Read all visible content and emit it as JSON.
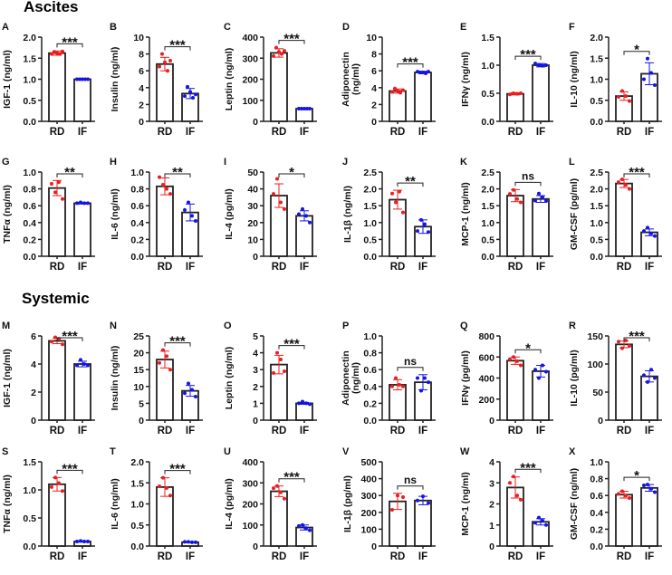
{
  "sections": {
    "ascites": "Ascites",
    "systemic": "Systemic"
  },
  "colors": {
    "rd": "#ee1c1c",
    "if": "#1414e6",
    "bar": "#222222"
  },
  "chart_data": [
    {
      "type": "bar",
      "letter": "A",
      "ylabel": [
        "IGF-1 (ng/ml)"
      ],
      "ylim": [
        0,
        2
      ],
      "step": 0.5,
      "categories": [
        "RD",
        "IF"
      ],
      "sig": "***",
      "series": [
        {
          "name": "RD",
          "mean": 1.62,
          "sd": 0.05,
          "points": [
            1.6,
            1.65,
            1.62,
            1.6,
            1.66
          ]
        },
        {
          "name": "IF",
          "mean": 1.0,
          "sd": 0.01,
          "points": [
            1.0,
            1.0,
            1.0,
            1.0,
            1.0
          ]
        }
      ]
    },
    {
      "type": "bar",
      "letter": "B",
      "ylabel": [
        "Insulin (ng/ml)"
      ],
      "ylim": [
        0,
        10
      ],
      "step": 2,
      "categories": [
        "RD",
        "IF"
      ],
      "sig": "***",
      "series": [
        {
          "name": "RD",
          "mean": 6.8,
          "sd": 0.8,
          "points": [
            6.5,
            8.0,
            7.0,
            6.0,
            7.2
          ]
        },
        {
          "name": "IF",
          "mean": 3.3,
          "sd": 0.6,
          "points": [
            3.0,
            4.1,
            3.5,
            2.8,
            3.2
          ]
        }
      ]
    },
    {
      "type": "bar",
      "letter": "C",
      "ylabel": [
        "Leptin (ng/ml)"
      ],
      "ylim": [
        0,
        400
      ],
      "step": 100,
      "categories": [
        "RD",
        "IF"
      ],
      "sig": "***",
      "series": [
        {
          "name": "RD",
          "mean": 325,
          "sd": 20,
          "points": [
            310,
            350,
            330,
            320,
            335
          ]
        },
        {
          "name": "IF",
          "mean": 60,
          "sd": 3,
          "points": [
            60,
            60,
            60,
            60,
            60
          ]
        }
      ]
    },
    {
      "type": "bar",
      "letter": "D",
      "ylabel": [
        "Adiponectin",
        "(ng/ml)"
      ],
      "ylim": [
        0,
        10
      ],
      "step": 2,
      "categories": [
        "RD",
        "IF"
      ],
      "sig": "***",
      "series": [
        {
          "name": "RD",
          "mean": 3.6,
          "sd": 0.25,
          "points": [
            3.5,
            3.9,
            3.6,
            3.4,
            3.7
          ]
        },
        {
          "name": "IF",
          "mean": 5.8,
          "sd": 0.15,
          "points": [
            5.9,
            5.8,
            5.8,
            5.7,
            5.9
          ]
        }
      ]
    },
    {
      "type": "bar",
      "letter": "E",
      "ylabel": [
        "IFNγ (ng/ml)"
      ],
      "ylim": [
        0,
        1.5
      ],
      "step": 0.5,
      "categories": [
        "RD",
        "IF"
      ],
      "sig": "***",
      "series": [
        {
          "name": "RD",
          "mean": 0.49,
          "sd": 0.02,
          "points": [
            0.48,
            0.5,
            0.49,
            0.5
          ]
        },
        {
          "name": "IF",
          "mean": 1.0,
          "sd": 0.03,
          "points": [
            1.03,
            1.0,
            0.99,
            1.0
          ]
        }
      ]
    },
    {
      "type": "bar",
      "letter": "F",
      "ylabel": [
        "IL-10 (ng/ml)"
      ],
      "ylim": [
        0,
        2
      ],
      "step": 0.5,
      "categories": [
        "RD",
        "IF"
      ],
      "sig": "*",
      "series": [
        {
          "name": "RD",
          "mean": 0.6,
          "sd": 0.1,
          "points": [
            0.58,
            0.72,
            0.6,
            0.48
          ]
        },
        {
          "name": "IF",
          "mean": 1.13,
          "sd": 0.26,
          "points": [
            1.0,
            1.49,
            1.15,
            0.86
          ]
        }
      ]
    },
    {
      "type": "bar",
      "letter": "G",
      "ylabel": [
        "TNFα (ng/ml)"
      ],
      "ylim": [
        0,
        1
      ],
      "step": 0.2,
      "categories": [
        "RD",
        "IF"
      ],
      "sig": "**",
      "series": [
        {
          "name": "RD",
          "mean": 0.81,
          "sd": 0.09,
          "points": [
            0.86,
            0.76,
            0.88,
            0.68
          ]
        },
        {
          "name": "IF",
          "mean": 0.63,
          "sd": 0.01,
          "points": [
            0.63,
            0.64,
            0.63,
            0.63
          ]
        }
      ]
    },
    {
      "type": "bar",
      "letter": "H",
      "ylabel": [
        "IL-6 (ng/ml)"
      ],
      "ylim": [
        0,
        1
      ],
      "step": 0.2,
      "categories": [
        "RD",
        "IF"
      ],
      "sig": "**",
      "series": [
        {
          "name": "RD",
          "mean": 0.83,
          "sd": 0.1,
          "points": [
            0.94,
            0.85,
            0.8,
            0.74
          ]
        },
        {
          "name": "IF",
          "mean": 0.52,
          "sd": 0.1,
          "points": [
            0.55,
            0.64,
            0.48,
            0.42
          ]
        }
      ]
    },
    {
      "type": "bar",
      "letter": "I",
      "ylabel": [
        "IL-4 (pg/ml)"
      ],
      "ylim": [
        0,
        50
      ],
      "step": 10,
      "categories": [
        "RD",
        "IF"
      ],
      "sig": "*",
      "series": [
        {
          "name": "RD",
          "mean": 36,
          "sd": 7,
          "points": [
            37,
            46,
            32,
            28
          ]
        },
        {
          "name": "IF",
          "mean": 24,
          "sd": 3,
          "points": [
            25,
            28,
            24,
            20
          ]
        }
      ]
    },
    {
      "type": "bar",
      "letter": "J",
      "ylabel": [
        "IL-1β (ng/ml)"
      ],
      "ylim": [
        0,
        2.5
      ],
      "step": 0.5,
      "categories": [
        "RD",
        "IF"
      ],
      "sig": "**",
      "series": [
        {
          "name": "RD",
          "mean": 1.68,
          "sd": 0.28,
          "points": [
            1.86,
            1.6,
            1.92,
            1.3
          ]
        },
        {
          "name": "IF",
          "mean": 0.88,
          "sd": 0.2,
          "points": [
            0.75,
            1.08,
            0.95,
            0.72
          ]
        }
      ]
    },
    {
      "type": "bar",
      "letter": "K",
      "ylabel": [
        "MCP-1 (ng/ml)"
      ],
      "ylim": [
        0,
        2.5
      ],
      "step": 0.5,
      "categories": [
        "RD",
        "IF"
      ],
      "sig": "ns",
      "series": [
        {
          "name": "RD",
          "mean": 1.8,
          "sd": 0.18,
          "points": [
            1.85,
            1.97,
            1.7,
            1.6
          ]
        },
        {
          "name": "IF",
          "mean": 1.7,
          "sd": 0.1,
          "points": [
            1.65,
            1.86,
            1.75,
            1.64
          ]
        }
      ]
    },
    {
      "type": "bar",
      "letter": "L",
      "ylabel": [
        "GM-CSF (pg/ml)"
      ],
      "ylim": [
        0,
        2.5
      ],
      "step": 0.5,
      "categories": [
        "RD",
        "IF"
      ],
      "sig": "***",
      "series": [
        {
          "name": "RD",
          "mean": 2.16,
          "sd": 0.12,
          "points": [
            2.2,
            2.28,
            2.12,
            2.0
          ]
        },
        {
          "name": "IF",
          "mean": 0.71,
          "sd": 0.1,
          "points": [
            0.75,
            0.85,
            0.68,
            0.6
          ]
        }
      ]
    },
    {
      "type": "bar",
      "letter": "M",
      "ylabel": [
        "IGF-1 (ng/ml)"
      ],
      "ylim": [
        0,
        6
      ],
      "step": 2,
      "categories": [
        "RD",
        "IF"
      ],
      "sig": "***",
      "series": [
        {
          "name": "RD",
          "mean": 5.65,
          "sd": 0.2,
          "points": [
            5.6,
            5.9,
            5.8,
            5.4
          ]
        },
        {
          "name": "IF",
          "mean": 4.0,
          "sd": 0.2,
          "points": [
            3.9,
            4.3,
            4.0,
            3.9
          ]
        }
      ]
    },
    {
      "type": "bar",
      "letter": "N",
      "ylabel": [
        "Insulin (ng/ml)"
      ],
      "ylim": [
        0,
        25
      ],
      "step": 5,
      "categories": [
        "RD",
        "IF"
      ],
      "sig": "***",
      "series": [
        {
          "name": "RD",
          "mean": 18,
          "sd": 2.5,
          "points": [
            17,
            20.8,
            19,
            15
          ]
        },
        {
          "name": "IF",
          "mean": 8.7,
          "sd": 1.6,
          "points": [
            8,
            10.9,
            9,
            7
          ]
        }
      ]
    },
    {
      "type": "bar",
      "letter": "O",
      "ylabel": [
        "Leptin (ng/ml)"
      ],
      "ylim": [
        0,
        5
      ],
      "step": 1,
      "categories": [
        "RD",
        "IF"
      ],
      "sig": "***",
      "series": [
        {
          "name": "RD",
          "mean": 3.3,
          "sd": 0.55,
          "points": [
            2.8,
            4.0,
            3.6,
            2.9
          ]
        },
        {
          "name": "IF",
          "mean": 1.0,
          "sd": 0.06,
          "points": [
            1.0,
            1.1,
            1.0,
            0.95
          ]
        }
      ]
    },
    {
      "type": "bar",
      "letter": "P",
      "ylabel": [
        "Adiponectin",
        "(ng/ml)"
      ],
      "ylim": [
        0,
        1
      ],
      "step": 0.2,
      "categories": [
        "RD",
        "IF"
      ],
      "sig": "ns",
      "series": [
        {
          "name": "RD",
          "mean": 0.42,
          "sd": 0.06,
          "points": [
            0.4,
            0.5,
            0.42,
            0.4
          ]
        },
        {
          "name": "IF",
          "mean": 0.45,
          "sd": 0.09,
          "points": [
            0.5,
            0.35,
            0.5,
            0.45
          ]
        }
      ]
    },
    {
      "type": "bar",
      "letter": "Q",
      "ylabel": [
        "IFNγ (pg/ml)"
      ],
      "ylim": [
        0,
        800
      ],
      "step": 200,
      "categories": [
        "RD",
        "IF"
      ],
      "sig": "*",
      "series": [
        {
          "name": "RD",
          "mean": 565,
          "sd": 35,
          "points": [
            580,
            600,
            560,
            520
          ]
        },
        {
          "name": "IF",
          "mean": 465,
          "sd": 55,
          "points": [
            480,
            400,
            520,
            460
          ]
        }
      ]
    },
    {
      "type": "bar",
      "letter": "R",
      "ylabel": [
        "IL-10 (pg/ml)"
      ],
      "ylim": [
        0,
        150
      ],
      "step": 50,
      "categories": [
        "RD",
        "IF"
      ],
      "sig": "***",
      "series": [
        {
          "name": "RD",
          "mean": 135,
          "sd": 6,
          "points": [
            140,
            128,
            142,
            132
          ]
        },
        {
          "name": "IF",
          "mean": 78,
          "sd": 10,
          "points": [
            80,
            68,
            90,
            75
          ]
        }
      ]
    },
    {
      "type": "bar",
      "letter": "S",
      "ylabel": [
        "TNFα (ng/ml)"
      ],
      "ylim": [
        0,
        1.5
      ],
      "step": 0.5,
      "categories": [
        "RD",
        "IF"
      ],
      "sig": "***",
      "series": [
        {
          "name": "RD",
          "mean": 1.1,
          "sd": 0.12,
          "points": [
            1.05,
            1.22,
            1.12,
            0.98
          ]
        },
        {
          "name": "IF",
          "mean": 0.08,
          "sd": 0.01,
          "points": [
            0.08,
            0.09,
            0.08,
            0.08
          ]
        }
      ]
    },
    {
      "type": "bar",
      "letter": "T",
      "ylabel": [
        "IL-6 (ng/ml)"
      ],
      "ylim": [
        0,
        2
      ],
      "step": 0.5,
      "categories": [
        "RD",
        "IF"
      ],
      "sig": "***",
      "series": [
        {
          "name": "RD",
          "mean": 1.4,
          "sd": 0.22,
          "points": [
            1.42,
            1.62,
            1.38,
            1.2
          ]
        },
        {
          "name": "IF",
          "mean": 0.09,
          "sd": 0.01,
          "points": [
            0.1,
            0.1,
            0.09,
            0.09
          ]
        }
      ]
    },
    {
      "type": "bar",
      "letter": "U",
      "ylabel": [
        "IL-4 (pg/ml)"
      ],
      "ylim": [
        0,
        400
      ],
      "step": 100,
      "categories": [
        "RD",
        "IF"
      ],
      "sig": "***",
      "series": [
        {
          "name": "RD",
          "mean": 260,
          "sd": 25,
          "points": [
            275,
            285,
            255,
            225
          ]
        },
        {
          "name": "IF",
          "mean": 88,
          "sd": 12,
          "points": [
            95,
            100,
            85,
            75
          ]
        }
      ]
    },
    {
      "type": "bar",
      "letter": "V",
      "ylabel": [
        "IL-1β (pg/ml)"
      ],
      "ylim": [
        0,
        500
      ],
      "step": 100,
      "categories": [
        "RD",
        "IF"
      ],
      "sig": "ns",
      "series": [
        {
          "name": "RD",
          "mean": 265,
          "sd": 48,
          "points": [
            215,
            300,
            290
          ]
        },
        {
          "name": "IF",
          "mean": 270,
          "sd": 25,
          "points": [
            270,
            295,
            255
          ]
        }
      ]
    },
    {
      "type": "bar",
      "letter": "W",
      "ylabel": [
        "MCP-1 (ng/ml)"
      ],
      "ylim": [
        0,
        4
      ],
      "step": 1,
      "categories": [
        "RD",
        "IF"
      ],
      "sig": "***",
      "series": [
        {
          "name": "RD",
          "mean": 2.78,
          "sd": 0.5,
          "points": [
            3.0,
            3.3,
            2.4,
            2.2
          ]
        },
        {
          "name": "IF",
          "mean": 1.15,
          "sd": 0.15,
          "points": [
            1.1,
            1.35,
            1.2,
            1.0
          ]
        }
      ]
    },
    {
      "type": "bar",
      "letter": "X",
      "ylabel": [
        "GM-CSF (ng/ml)"
      ],
      "ylim": [
        0,
        1
      ],
      "step": 0.2,
      "categories": [
        "RD",
        "IF"
      ],
      "sig": "*",
      "series": [
        {
          "name": "RD",
          "mean": 0.61,
          "sd": 0.04,
          "points": [
            0.62,
            0.65,
            0.6,
            0.57
          ]
        },
        {
          "name": "IF",
          "mean": 0.69,
          "sd": 0.04,
          "points": [
            0.72,
            0.73,
            0.68,
            0.64
          ]
        }
      ]
    }
  ]
}
